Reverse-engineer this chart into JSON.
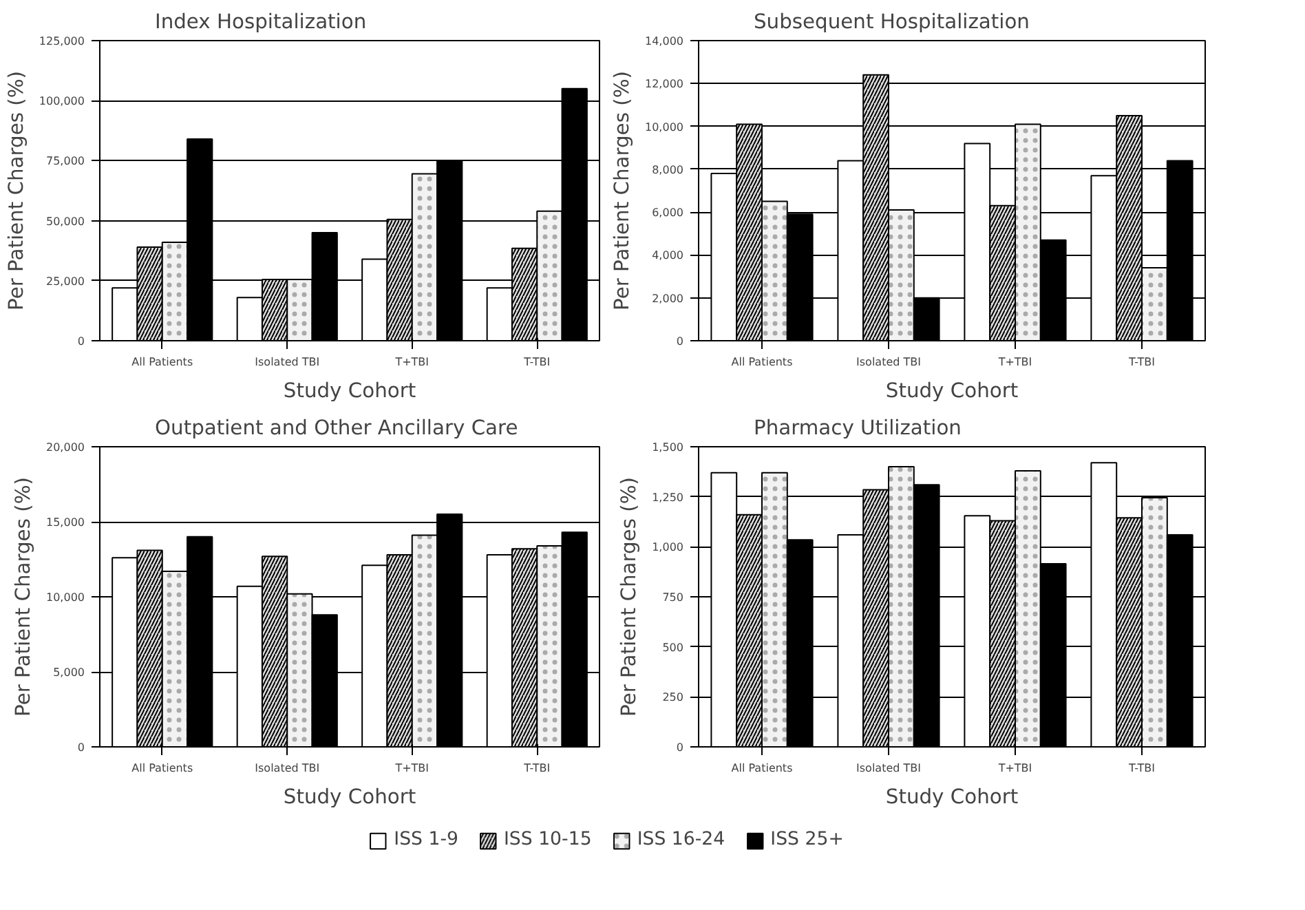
{
  "chart_data": [
    {
      "type": "bar",
      "title": "Index Hospitalization",
      "xlabel": "Study Cohort",
      "ylabel": "Per Patient Charges (%)",
      "categories": [
        "All Patients",
        "Isolated TBI",
        "T+TBI",
        "T-TBI"
      ],
      "series": [
        {
          "name": "ISS 1-9",
          "color": "#ffffff",
          "values": [
            22000,
            18000,
            34000,
            22000
          ]
        },
        {
          "name": "ISS 10-15",
          "color": "#dddddd",
          "values": [
            39000,
            25500,
            50500,
            38500
          ]
        },
        {
          "name": "ISS 16-24",
          "color": "#f2f2f2",
          "values": [
            41000,
            25500,
            69500,
            54000
          ]
        },
        {
          "name": "ISS 25+",
          "color": "#000000",
          "values": [
            84000,
            45000,
            75000,
            105000
          ]
        }
      ],
      "ylim": [
        0,
        125000
      ],
      "yticks": [
        0,
        {
          "value": 25000,
          "label": "25,000"
        },
        {
          "value": 50000,
          "label": "50,000"
        },
        {
          "value": 75000,
          "label": "75,000"
        },
        {
          "value": 100000,
          "label": "100,000"
        },
        {
          "value": 125000,
          "label": "125,000"
        }
      ],
      "grid": "y",
      "legend": "bottom"
    },
    {
      "type": "bar",
      "title": "Subsequent Hospitalization",
      "xlabel": "Study Cohort",
      "ylabel": "Per Patient Charges (%)",
      "categories": [
        "All Patients",
        "Isolated TBI",
        "T+TBI",
        "T-TBI"
      ],
      "series": [
        {
          "color": "#ffffff",
          "values": [
            7800,
            8400,
            9200,
            7700
          ]
        },
        {
          "color": "#dddddd",
          "values": [
            10100,
            12400,
            6300,
            10500
          ]
        },
        {
          "color": "#f2f2f2",
          "values": [
            6500,
            6100,
            10100,
            3400
          ]
        },
        {
          "color": "#000000",
          "values": [
            5900,
            2000,
            4700,
            8400
          ]
        }
      ],
      "ylim": [
        0,
        14000
      ],
      "yticks": [
        0,
        {
          "value": 2000,
          "label": "2,000"
        },
        {
          "value": 4000,
          "label": "4,000"
        },
        {
          "value": 6000,
          "label": "6,000"
        },
        {
          "value": 8000,
          "label": "8,000"
        },
        {
          "value": 10000,
          "label": "10,000"
        },
        {
          "value": 12000,
          "label": "12,000"
        },
        {
          "value": 14000,
          "label": "14,000"
        }
      ],
      "grid": "y"
    },
    {
      "type": "bar",
      "title": "Outpatient and Other Ancillary Care",
      "xlabel": "Study Cohort",
      "ylabel": "Per Patient Charges (%)",
      "categories": [
        "All Patients",
        "Isolated TBI",
        "T+TBI",
        "T-TBI"
      ],
      "series": [
        {
          "color": "#ffffff",
          "values": [
            12600,
            10700,
            12100,
            12800
          ]
        },
        {
          "color": "#dddddd",
          "values": [
            13100,
            12700,
            12800,
            13200
          ]
        },
        {
          "color": "#f2f2f2",
          "values": [
            11700,
            10200,
            14100,
            13400
          ]
        },
        {
          "color": "#000000",
          "values": [
            14000,
            8800,
            15500,
            14300
          ]
        }
      ],
      "ylim": [
        0,
        20000
      ],
      "yticks": [
        0,
        {
          "value": 5000,
          "label": "5,000"
        },
        {
          "value": 10000,
          "label": "10,000"
        },
        {
          "value": 15000,
          "label": "15,000"
        },
        {
          "value": 20000,
          "label": "20,000"
        }
      ],
      "grid": "y"
    },
    {
      "type": "bar",
      "title": "Pharmacy Utilization",
      "xlabel": "Study Cohort",
      "ylabel": "Per Patient Charges (%)",
      "categories": [
        "All Patients",
        "Isolated TBI",
        "T+TBI",
        "T-TBI"
      ],
      "series": [
        {
          "color": "#ffffff",
          "values": [
            1370,
            1060,
            1155,
            1420
          ]
        },
        {
          "color": "#dddddd",
          "values": [
            1160,
            1285,
            1130,
            1145
          ]
        },
        {
          "color": "#f2f2f2",
          "values": [
            1370,
            1400,
            1380,
            1245
          ]
        },
        {
          "color": "#000000",
          "values": [
            1035,
            1310,
            915,
            1060
          ]
        }
      ],
      "ylim": [
        0,
        1500
      ],
      "yticks": [
        0,
        250,
        500,
        750,
        {
          "value": 1000,
          "label": "1,000"
        },
        {
          "value": 1250,
          "label": "1,250"
        },
        {
          "value": 1500,
          "label": "1,500"
        }
      ],
      "grid": "y"
    }
  ]
}
